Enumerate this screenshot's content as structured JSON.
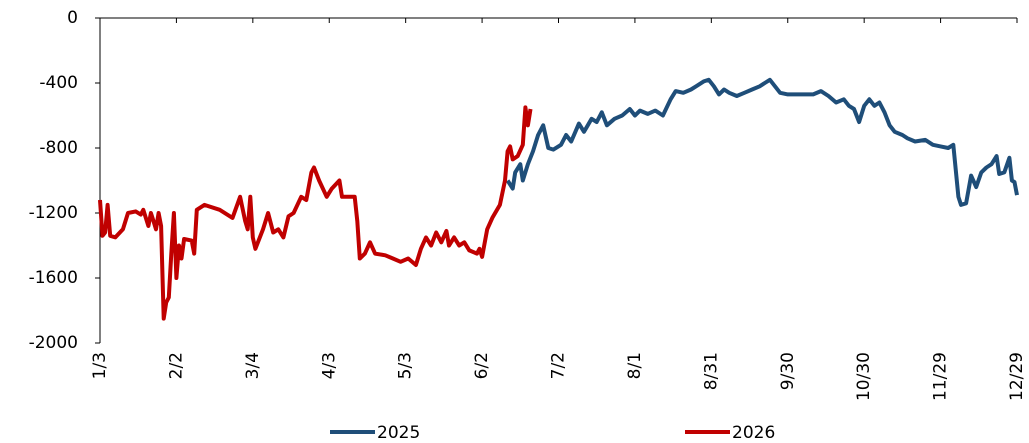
{
  "chart_data": {
    "type": "line",
    "xlim": [
      3,
      363
    ],
    "xticks": [
      {
        "value": 3,
        "label": "1/3"
      },
      {
        "value": 33,
        "label": "2/2"
      },
      {
        "value": 63,
        "label": "3/4"
      },
      {
        "value": 93,
        "label": "4/3"
      },
      {
        "value": 123,
        "label": "5/3"
      },
      {
        "value": 153,
        "label": "6/2"
      },
      {
        "value": 183,
        "label": "7/2"
      },
      {
        "value": 213,
        "label": "8/1"
      },
      {
        "value": 243,
        "label": "8/31"
      },
      {
        "value": 273,
        "label": "9/30"
      },
      {
        "value": 303,
        "label": "10/30"
      },
      {
        "value": 333,
        "label": "11/29"
      },
      {
        "value": 363,
        "label": "12/29"
      }
    ],
    "ylim": [
      -2000,
      0
    ],
    "yticks": [
      -2000,
      -1600,
      -1200,
      -800,
      -400,
      0
    ],
    "legend": "bottom",
    "series": [
      {
        "name": "2025",
        "color": "#1f4e79",
        "x": [
          163,
          165,
          166,
          168,
          169,
          171,
          173,
          175,
          177,
          179,
          181,
          184,
          186,
          188,
          191,
          193,
          196,
          198,
          200,
          202,
          205,
          208,
          211,
          213,
          215,
          218,
          221,
          224,
          227,
          229,
          232,
          235,
          237,
          240,
          242,
          244,
          246,
          248,
          250,
          253,
          256,
          259,
          262,
          264,
          266,
          268,
          270,
          273,
          278,
          283,
          286,
          289,
          292,
          295,
          297,
          299,
          301,
          303,
          305,
          307,
          309,
          311,
          313,
          315,
          318,
          320,
          323,
          327,
          330,
          333,
          336,
          338,
          340,
          341,
          343,
          345,
          347,
          349,
          351,
          353,
          355,
          356,
          358,
          360,
          361,
          362,
          363
        ],
        "values": [
          -1000,
          -1050,
          -950,
          -900,
          -1000,
          -900,
          -820,
          -720,
          -660,
          -800,
          -810,
          -780,
          -720,
          -760,
          -650,
          -700,
          -620,
          -640,
          -580,
          -660,
          -620,
          -600,
          -560,
          -600,
          -570,
          -590,
          -570,
          -600,
          -500,
          -450,
          -460,
          -440,
          -420,
          -390,
          -380,
          -420,
          -470,
          -440,
          -460,
          -480,
          -460,
          -440,
          -420,
          -400,
          -380,
          -420,
          -460,
          -470,
          -470,
          -470,
          -450,
          -480,
          -520,
          -500,
          -540,
          -560,
          -640,
          -540,
          -500,
          -540,
          -520,
          -580,
          -660,
          -700,
          -720,
          -740,
          -760,
          -750,
          -780,
          -790,
          -800,
          -780,
          -1100,
          -1150,
          -1140,
          -970,
          -1040,
          -950,
          -920,
          -900,
          -850,
          -960,
          -950,
          -860,
          -1000,
          -1010,
          -1090
        ]
      },
      {
        "name": "2026",
        "color": "#c00000",
        "x": [
          3,
          4,
          5,
          6,
          7,
          9,
          12,
          14,
          17,
          19,
          20,
          22,
          23,
          24,
          25,
          26,
          27,
          28,
          29,
          30,
          31,
          32,
          33,
          34,
          35,
          36,
          39,
          40,
          41,
          44,
          50,
          55,
          58,
          60,
          61,
          62,
          63,
          64,
          67,
          69,
          71,
          73,
          75,
          77,
          79,
          82,
          84,
          86,
          87,
          89,
          92,
          94,
          97,
          98,
          101,
          103,
          104,
          105,
          107,
          109,
          111,
          115,
          118,
          121,
          124,
          127,
          129,
          131,
          133,
          135,
          137,
          139,
          140,
          142,
          144,
          146,
          148,
          151,
          152,
          153,
          155,
          157,
          160,
          162,
          163,
          164,
          165,
          167,
          169,
          170,
          171,
          172
        ],
        "values": [
          -1120,
          -1340,
          -1320,
          -1150,
          -1340,
          -1350,
          -1300,
          -1200,
          -1190,
          -1210,
          -1180,
          -1280,
          -1200,
          -1250,
          -1300,
          -1200,
          -1280,
          -1850,
          -1750,
          -1720,
          -1450,
          -1200,
          -1600,
          -1400,
          -1480,
          -1360,
          -1370,
          -1450,
          -1180,
          -1150,
          -1180,
          -1230,
          -1100,
          -1250,
          -1300,
          -1100,
          -1350,
          -1420,
          -1300,
          -1200,
          -1320,
          -1300,
          -1350,
          -1220,
          -1200,
          -1100,
          -1120,
          -950,
          -920,
          -1000,
          -1100,
          -1050,
          -1000,
          -1100,
          -1100,
          -1100,
          -1250,
          -1480,
          -1450,
          -1380,
          -1450,
          -1460,
          -1480,
          -1500,
          -1480,
          -1520,
          -1420,
          -1350,
          -1400,
          -1320,
          -1380,
          -1310,
          -1400,
          -1350,
          -1400,
          -1380,
          -1430,
          -1450,
          -1420,
          -1470,
          -1300,
          -1230,
          -1150,
          -1000,
          -820,
          -790,
          -870,
          -850,
          -780,
          -550,
          -660,
          -560
        ]
      }
    ]
  }
}
